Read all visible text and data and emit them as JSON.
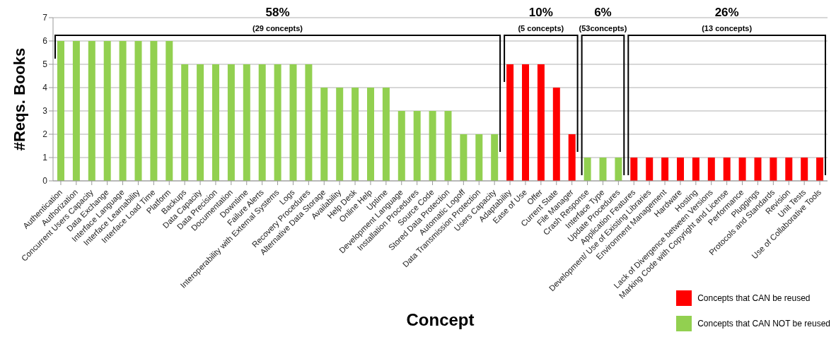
{
  "chart_data": {
    "type": "bar",
    "xlabel": "Concept",
    "ylabel": "#Reqs. Books",
    "categories": [
      "Authentication",
      "Authorization",
      "Concurrent Users Capacity",
      "Data Exchange",
      "Interface Language",
      "Interface Learnability",
      "Interface Load Time",
      "Platform",
      "Backups",
      "Data Capacity",
      "Data Precision",
      "Documentation",
      "Downtime",
      "Failure Alerts",
      "Interoperability with External Systems",
      "Logs",
      "Recovery Procedures",
      "Alternative Data  Storage",
      "Availability",
      "Help Desk",
      "Online Help",
      "Uptime",
      "Development Language",
      "Installation  Procedures",
      "Source Code",
      "Stored Data Protection",
      "Automatic Logoff",
      "Data Transmission  Protection",
      "Users Capacity",
      "Adaptability",
      "Ease of Use",
      "Offer",
      "Current State",
      "File Manager",
      "Crash Response",
      "Interface Type",
      "Update Procedures",
      "Application Features",
      "Development/ Use of Existing Libraries",
      "Environment Management",
      "Hardware",
      "Hosting",
      "Lack of Divergence between Versions",
      "Marking Code with Copyright and License",
      "Performance",
      "Pluggings",
      "Protocols and Standards",
      "Revision",
      "Unit Tests",
      "Use of Collaborative Tools"
    ],
    "series": [
      {
        "name": "Concepts that CAN be reused",
        "color": "#ff0000",
        "values": [
          null,
          null,
          null,
          null,
          null,
          null,
          null,
          null,
          null,
          null,
          null,
          null,
          null,
          null,
          null,
          null,
          null,
          null,
          null,
          null,
          null,
          null,
          null,
          null,
          null,
          null,
          null,
          null,
          null,
          5,
          5,
          5,
          4,
          2,
          null,
          null,
          null,
          1,
          1,
          1,
          1,
          1,
          1,
          1,
          1,
          1,
          1,
          1,
          1,
          1
        ]
      },
      {
        "name": "Concepts that CAN NOT be reused",
        "color": "#92d050",
        "values": [
          6,
          6,
          6,
          6,
          6,
          6,
          6,
          6,
          5,
          5,
          5,
          5,
          5,
          5,
          5,
          5,
          5,
          4,
          4,
          4,
          4,
          4,
          3,
          3,
          3,
          3,
          2,
          2,
          2,
          null,
          null,
          null,
          null,
          null,
          1,
          1,
          1,
          null,
          null,
          null,
          null,
          null,
          null,
          null,
          null,
          null,
          null,
          null,
          null,
          null
        ]
      }
    ],
    "stacked": true,
    "ylim": [
      0,
      7
    ],
    "yticks": [
      0,
      1,
      2,
      3,
      4,
      5,
      6,
      7
    ],
    "grid": "y",
    "legend": "bottom right",
    "annotations": [
      "58%",
      "(29 concepts)",
      "10%",
      "(5 concepts)",
      "6%",
      "(53concepts)",
      "26%",
      "(13 concepts)"
    ]
  }
}
